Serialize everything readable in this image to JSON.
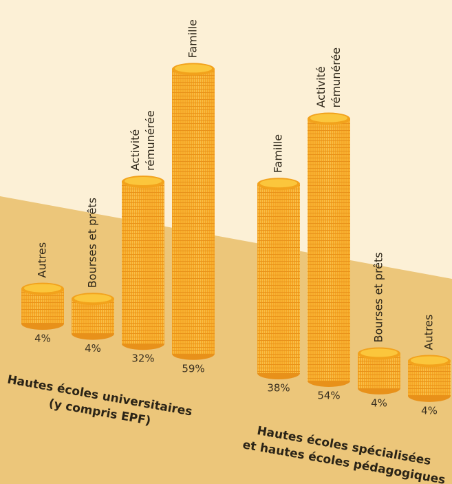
{
  "chart_data": {
    "type": "coin-stacks",
    "groups": [
      {
        "label": [
          "Hautes écoles universitaires",
          "(y compris EPF)"
        ],
        "categories": [
          "Autres",
          "Bourses et prêts",
          "Activité rémunérée",
          "Famille"
        ],
        "values": [
          4,
          4,
          32,
          59
        ],
        "value_labels": [
          "4%",
          "4%",
          "32%",
          "59%"
        ]
      },
      {
        "label": [
          "Hautes écoles spécialisées",
          "et hautes écoles pédagogiques"
        ],
        "categories": [
          "Famille",
          "Activité rémunérée",
          "Bourses et prêts",
          "Autres"
        ],
        "values": [
          38,
          54,
          4,
          4
        ],
        "value_labels": [
          "38%",
          "54%",
          "4%",
          "4%"
        ]
      }
    ],
    "color": "#f6a623"
  }
}
